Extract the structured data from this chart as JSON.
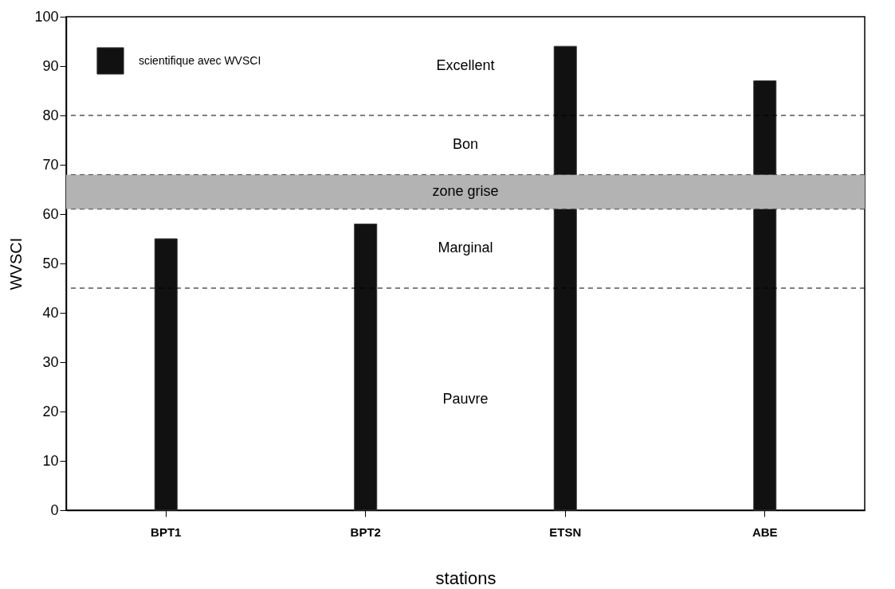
{
  "chart_data": {
    "type": "bar",
    "xlabel": "stations",
    "ylabel": "WVSCI",
    "categories": [
      "BPT1",
      "BPT2",
      "ETSN",
      "ABE"
    ],
    "series": [
      {
        "name": "scientifique avec WVSCI",
        "color": "#111111",
        "values": [
          55,
          58,
          94,
          87
        ]
      }
    ],
    "ylim": [
      0,
      100
    ],
    "yticks": [
      0,
      10,
      20,
      30,
      40,
      50,
      60,
      70,
      80,
      90,
      100
    ],
    "ref_lines": [
      {
        "axis": "y",
        "value": 80,
        "line_style": "dashed"
      },
      {
        "axis": "y",
        "value": 68,
        "line_style": "dashed",
        "color": "#444444"
      },
      {
        "axis": "y",
        "value": 61,
        "line_style": "dashed",
        "color": "#444444"
      },
      {
        "axis": "y",
        "value": 45,
        "line_style": "dashed"
      }
    ],
    "bands": [
      {
        "axis": "y",
        "from": 61,
        "to": 68,
        "color": "#b3b3b3",
        "label": "zone grise"
      }
    ],
    "annotations": [
      "Excellent",
      "Bon",
      "Marginal",
      "Pauvre"
    ],
    "legend": "top left",
    "grid": false
  }
}
